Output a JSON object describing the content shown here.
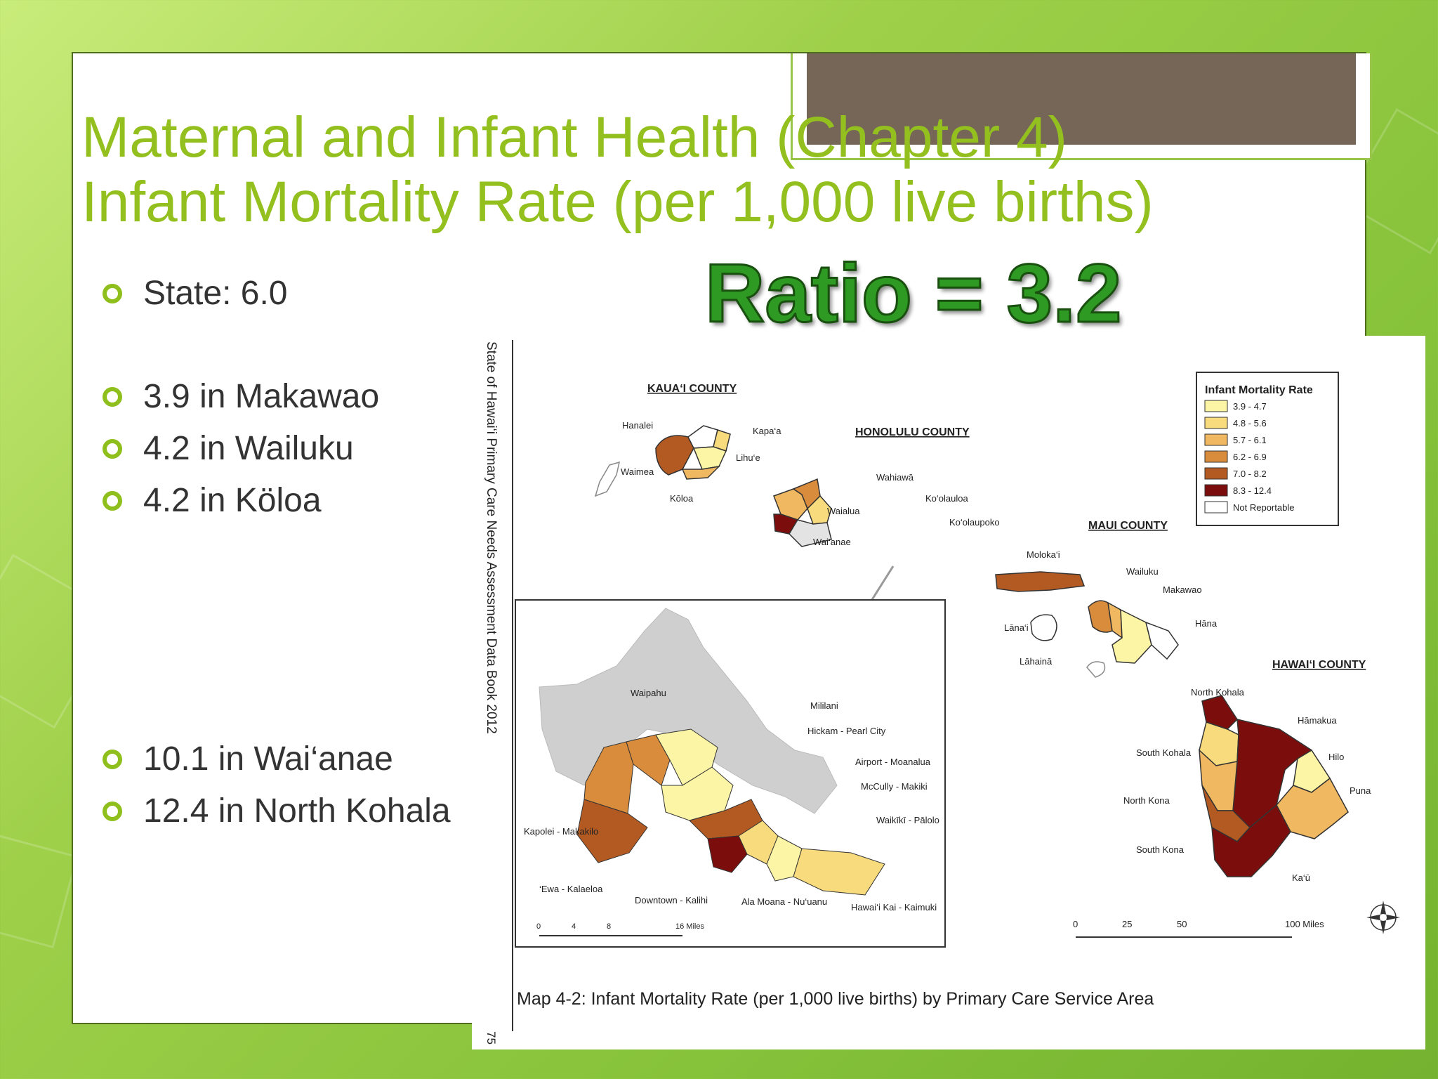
{
  "slide": {
    "title_line1": "Maternal and Infant Health (Chapter 4)",
    "title_line2": "Infant Mortality Rate (per 1,000 live births)",
    "ratio": "Ratio = 3.2",
    "bullets": [
      "State: 6.0",
      "3.9 in Makawao",
      "4.2 in Wailuku",
      "4.2 in Köloa",
      "10.1 in Wai‘anae",
      "12.4 in North Kohala"
    ]
  },
  "map": {
    "side_text": "State of Hawai‘i Primary Care Needs Assessment Data Book 2012",
    "page_number": "75",
    "caption": "Map 4-2: Infant Mortality Rate (per 1,000 live births) by Primary Care Service Area",
    "counties": [
      "KAUA‘I COUNTY",
      "HONOLULU COUNTY",
      "MAUI COUNTY",
      "HAWAI‘I COUNTY"
    ],
    "legend": {
      "title": "Infant Mortality Rate",
      "items": [
        {
          "label": "3.9 - 4.7",
          "color": "#fdf5a6"
        },
        {
          "label": "4.8 - 5.6",
          "color": "#f7db7c"
        },
        {
          "label": "5.7 - 6.1",
          "color": "#f0b860"
        },
        {
          "label": "6.2 - 6.9",
          "color": "#d98c3c"
        },
        {
          "label": "7.0 - 8.2",
          "color": "#b35a23"
        },
        {
          "label": "8.3 - 12.4",
          "color": "#7c0d0d"
        },
        {
          "label": "Not Reportable",
          "color": "#ffffff"
        }
      ]
    },
    "kauai_labels": [
      "Hanalei",
      "Kapa‘a",
      "Lihu‘e",
      "Waimea",
      "Kōloa"
    ],
    "oahu_labels": [
      "Wahiawā",
      "Ko‘olauloa",
      "Waialua",
      "Ko‘olaupoko",
      "Wai‘anae"
    ],
    "maui_labels": [
      "Moloka‘i",
      "Wailuku",
      "Makawao",
      "Lāna‘i",
      "Hāna",
      "Lāhainā"
    ],
    "hawaii_labels": [
      "North Kohala",
      "Hāmakua",
      "South Kohala",
      "Hilo",
      "North Kona",
      "Puna",
      "South Kona",
      "Ka‘ū"
    ],
    "inset_labels": [
      "Waipahu",
      "Mililani",
      "Hickam - Pearl City",
      "Airport - Moanalua",
      "McCully - Makiki",
      "Waikīkī - Pālolo",
      "Kapolei - Makakilo",
      "‘Ewa - Kalaeloa",
      "Downtown - Kalihi",
      "Ala Moana - Nu‘uanu",
      "Hawai‘i Kai - Kaimuki"
    ],
    "scale_inset": [
      "0",
      "4",
      "8",
      "16 Miles"
    ],
    "scale_main": [
      "0",
      "25",
      "50",
      "100 Miles"
    ]
  }
}
